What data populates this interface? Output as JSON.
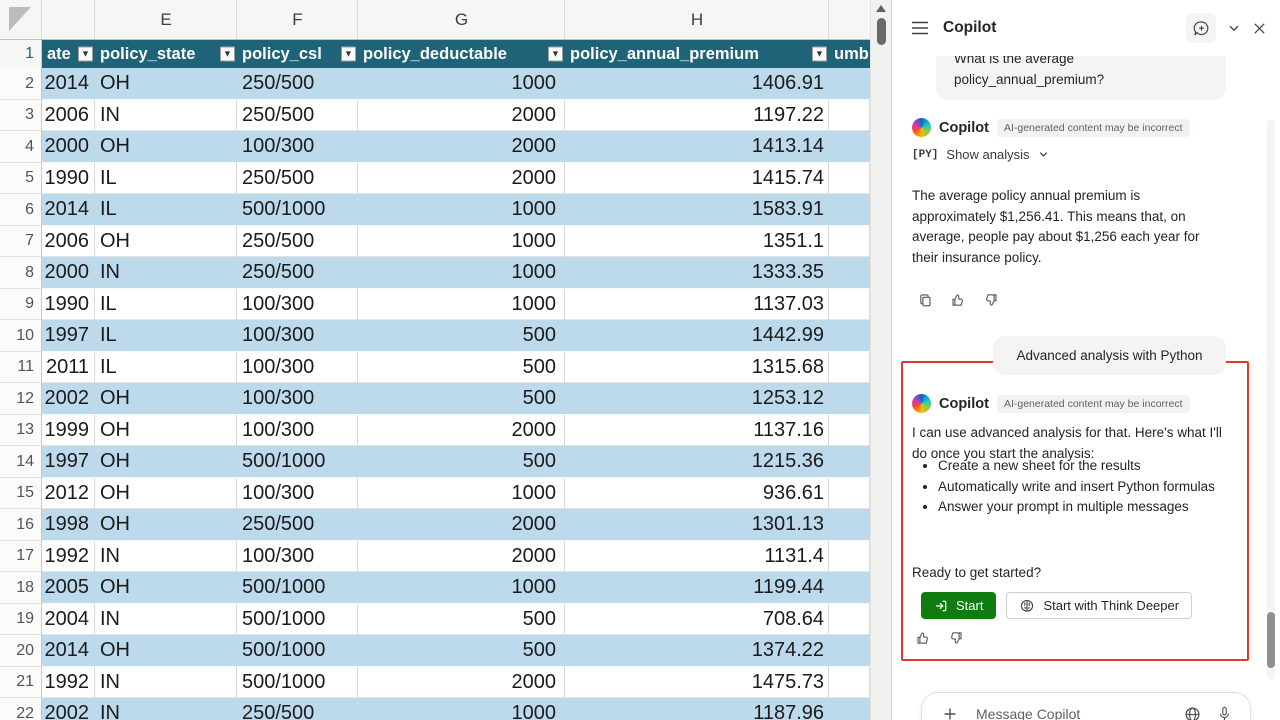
{
  "colors": {
    "header_teal": "#1E6377",
    "band_blue": "#BDD9EC",
    "highlight_red": "#E5362B",
    "start_green": "#107C10"
  },
  "sheet": {
    "column_letters": [
      "E",
      "F",
      "G",
      "H"
    ],
    "headers": [
      "ate",
      "policy_state",
      "policy_csl",
      "policy_deductable",
      "policy_annual_premium",
      "umb"
    ],
    "rows": [
      {
        "n": "2",
        "date": "2014",
        "state": "OH",
        "csl": "250/500",
        "deductible": "1000",
        "premium": "1406.91"
      },
      {
        "n": "3",
        "date": "2006",
        "state": "IN",
        "csl": "250/500",
        "deductible": "2000",
        "premium": "1197.22"
      },
      {
        "n": "4",
        "date": "2000",
        "state": "OH",
        "csl": "100/300",
        "deductible": "2000",
        "premium": "1413.14"
      },
      {
        "n": "5",
        "date": "1990",
        "state": "IL",
        "csl": "250/500",
        "deductible": "2000",
        "premium": "1415.74"
      },
      {
        "n": "6",
        "date": "2014",
        "state": "IL",
        "csl": "500/1000",
        "deductible": "1000",
        "premium": "1583.91"
      },
      {
        "n": "7",
        "date": "2006",
        "state": "OH",
        "csl": "250/500",
        "deductible": "1000",
        "premium": "1351.1"
      },
      {
        "n": "8",
        "date": "2000",
        "state": "IN",
        "csl": "250/500",
        "deductible": "1000",
        "premium": "1333.35"
      },
      {
        "n": "9",
        "date": "1990",
        "state": "IL",
        "csl": "100/300",
        "deductible": "1000",
        "premium": "1137.03"
      },
      {
        "n": "10",
        "date": "1997",
        "state": "IL",
        "csl": "100/300",
        "deductible": "500",
        "premium": "1442.99"
      },
      {
        "n": "11",
        "date": "2011",
        "state": "IL",
        "csl": "100/300",
        "deductible": "500",
        "premium": "1315.68"
      },
      {
        "n": "12",
        "date": "2002",
        "state": "OH",
        "csl": "100/300",
        "deductible": "500",
        "premium": "1253.12"
      },
      {
        "n": "13",
        "date": "1999",
        "state": "OH",
        "csl": "100/300",
        "deductible": "2000",
        "premium": "1137.16"
      },
      {
        "n": "14",
        "date": "1997",
        "state": "OH",
        "csl": "500/1000",
        "deductible": "500",
        "premium": "1215.36"
      },
      {
        "n": "15",
        "date": "2012",
        "state": "OH",
        "csl": "100/300",
        "deductible": "1000",
        "premium": "936.61"
      },
      {
        "n": "16",
        "date": "1998",
        "state": "OH",
        "csl": "250/500",
        "deductible": "2000",
        "premium": "1301.13"
      },
      {
        "n": "17",
        "date": "1992",
        "state": "IN",
        "csl": "100/300",
        "deductible": "2000",
        "premium": "1131.4"
      },
      {
        "n": "18",
        "date": "2005",
        "state": "OH",
        "csl": "500/1000",
        "deductible": "1000",
        "premium": "1199.44"
      },
      {
        "n": "19",
        "date": "2004",
        "state": "IN",
        "csl": "500/1000",
        "deductible": "500",
        "premium": "708.64"
      },
      {
        "n": "20",
        "date": "2014",
        "state": "OH",
        "csl": "500/1000",
        "deductible": "500",
        "premium": "1374.22"
      },
      {
        "n": "21",
        "date": "1992",
        "state": "IN",
        "csl": "500/1000",
        "deductible": "2000",
        "premium": "1475.73"
      },
      {
        "n": "22",
        "date": "2002",
        "state": "IN",
        "csl": "250/500",
        "deductible": "1000",
        "premium": "1187.96"
      }
    ]
  },
  "copilot": {
    "title": "Copilot",
    "user_message_1": "What is the average policy_annual_premium?",
    "response_1": {
      "sender": "Copilot",
      "badge": "AI-generated content may be incorrect",
      "analysis_icon": "[PY]",
      "analysis_label": "Show analysis",
      "text": "The average policy annual premium is approximately $1,256.41. This means that, on average, people pay about $1,256 each year for their insurance policy."
    },
    "user_message_2": "Advanced analysis with Python",
    "response_2": {
      "sender": "Copilot",
      "badge": "AI-generated content may be incorrect",
      "intro": "I can use advanced analysis for that. Here's what I'll do once you start the analysis:",
      "bullets": [
        "Create a new sheet for the results",
        "Automatically write and insert Python formulas",
        "Answer your prompt in multiple messages"
      ],
      "outro": "Ready to get started?",
      "start_label": "Start",
      "deep_label": "Start with Think Deeper"
    },
    "input_placeholder": "Message Copilot"
  }
}
